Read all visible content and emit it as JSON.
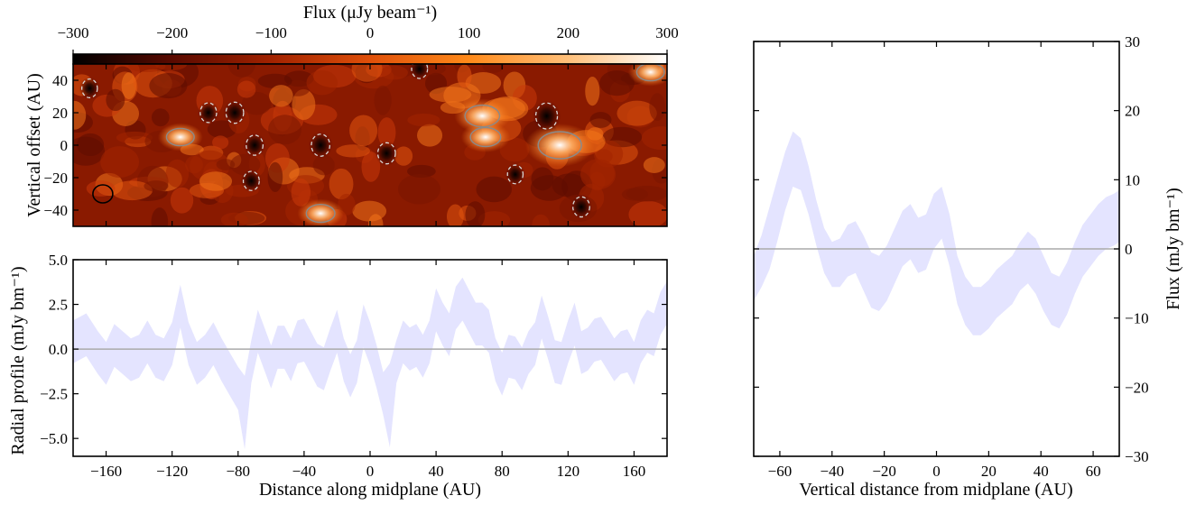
{
  "chart_data": [
    {
      "id": "flux-map",
      "type": "heatmap",
      "colorbar": {
        "label": "Flux (μJy beam⁻¹)",
        "range": [
          -300,
          300
        ],
        "ticks": [
          "−300",
          "−200",
          "−100",
          "0",
          "100",
          "200",
          "300"
        ],
        "tick_values": [
          -300,
          -200,
          -100,
          0,
          100,
          200,
          300
        ],
        "colormap": [
          "#000000",
          "#5a0a00",
          "#a12200",
          "#e0500a",
          "#ff8a1a",
          "#ffc07a",
          "#ffffff"
        ]
      },
      "xlim": [
        -180,
        180
      ],
      "ylim": [
        -50,
        50
      ],
      "ylabel": "Vertical offset (AU)",
      "ytick_labels": [
        "40",
        "20",
        "0",
        "−20",
        "−40"
      ],
      "ytick_values": [
        40,
        20,
        0,
        -20,
        -40
      ],
      "hot_spots": [
        {
          "x": 115,
          "y": 0,
          "value": 300
        },
        {
          "x": 68,
          "y": 18,
          "value": 200
        },
        {
          "x": 70,
          "y": 5,
          "value": 150
        },
        {
          "x": -115,
          "y": 5,
          "value": 120
        },
        {
          "x": -30,
          "y": -42,
          "value": 130
        },
        {
          "x": 170,
          "y": 45,
          "value": 120
        }
      ],
      "cold_spots": [
        {
          "x": 107,
          "y": 18,
          "value": -300
        },
        {
          "x": -30,
          "y": 0,
          "value": -220
        },
        {
          "x": -82,
          "y": 20,
          "value": -200
        },
        {
          "x": 10,
          "y": -5,
          "value": -200
        },
        {
          "x": -70,
          "y": 0,
          "value": -180
        },
        {
          "x": 128,
          "y": -38,
          "value": -180
        },
        {
          "x": -98,
          "y": 20,
          "value": -170
        },
        {
          "x": 30,
          "y": 47,
          "value": -160
        },
        {
          "x": -170,
          "y": 35,
          "value": -150
        },
        {
          "x": -72,
          "y": -22,
          "value": -160
        },
        {
          "x": 88,
          "y": -18,
          "value": -150
        }
      ],
      "beam": {
        "x": -162,
        "y": -30
      }
    },
    {
      "id": "radial-profile",
      "type": "area",
      "xlabel": "Distance along midplane (AU)",
      "ylabel": "Radial profile (mJy bm⁻¹)",
      "xlim": [
        -180,
        180
      ],
      "ylim": [
        -6,
        5
      ],
      "xtick_labels": [
        "−160",
        "−120",
        "−80",
        "−40",
        "0",
        "40",
        "80",
        "120",
        "160"
      ],
      "xtick_values": [
        -160,
        -120,
        -80,
        -40,
        0,
        40,
        80,
        120,
        160
      ],
      "ytick_labels": [
        "5.0",
        "2.5",
        "0.0",
        "−2.5",
        "−5.0"
      ],
      "ytick_values": [
        5,
        2.5,
        0,
        -2.5,
        -5
      ],
      "band_color": "#e4e4ff",
      "zero_line_color": "#aaaaaa",
      "x": [
        -180,
        -172,
        -165,
        -160,
        -155,
        -150,
        -145,
        -140,
        -135,
        -130,
        -125,
        -120,
        -115,
        -110,
        -105,
        -100,
        -95,
        -90,
        -85,
        -80,
        -76,
        -72,
        -68,
        -64,
        -60,
        -56,
        -52,
        -48,
        -44,
        -40,
        -36,
        -32,
        -28,
        -24,
        -20,
        -16,
        -12,
        -8,
        -4,
        0,
        4,
        8,
        12,
        16,
        20,
        24,
        28,
        32,
        36,
        40,
        44,
        48,
        52,
        56,
        60,
        64,
        68,
        72,
        76,
        80,
        84,
        88,
        92,
        96,
        100,
        104,
        108,
        112,
        116,
        120,
        124,
        128,
        132,
        136,
        140,
        144,
        148,
        152,
        156,
        160,
        164,
        168,
        172,
        176,
        180
      ],
      "upper": [
        1.6,
        2.0,
        1.0,
        0.4,
        1.4,
        1.0,
        0.6,
        0.8,
        1.6,
        0.8,
        0.6,
        1.5,
        3.6,
        1.5,
        0.4,
        0.8,
        1.5,
        0.6,
        -0.2,
        -1.0,
        -1.5,
        0.5,
        2.2,
        1.2,
        0.2,
        1.3,
        1.3,
        0.6,
        1.6,
        1.7,
        1.0,
        0.3,
        0.1,
        1.2,
        2.2,
        0.6,
        -0.3,
        0.5,
        2.5,
        1.5,
        0.2,
        -1.3,
        -0.8,
        0.5,
        1.6,
        1.2,
        1.4,
        0.8,
        1.6,
        3.4,
        2.6,
        2.0,
        3.5,
        4.0,
        3.3,
        2.6,
        2.6,
        2.2,
        0.6,
        -0.2,
        0.8,
        0.7,
        0.1,
        1.0,
        1.5,
        3.0,
        1.8,
        0.5,
        0.4,
        1.6,
        2.6,
        1.0,
        1.2,
        1.7,
        1.8,
        1.2,
        0.6,
        1.0,
        1.1,
        0.4,
        1.6,
        2.2,
        2.0,
        3.2,
        3.8
      ],
      "lower": [
        -0.8,
        -0.4,
        -1.4,
        -2.0,
        -1.0,
        -1.4,
        -1.8,
        -1.6,
        -0.8,
        -1.6,
        -1.8,
        -0.9,
        1.2,
        -0.9,
        -2.0,
        -1.6,
        -0.9,
        -1.8,
        -2.6,
        -3.4,
        -5.6,
        -1.9,
        -0.2,
        -1.2,
        -2.2,
        -1.1,
        -1.1,
        -1.8,
        -0.8,
        -0.7,
        -1.4,
        -2.1,
        -2.3,
        -1.2,
        -0.2,
        -1.8,
        -2.7,
        -1.9,
        0.1,
        -0.9,
        -2.2,
        -3.7,
        -5.5,
        -1.9,
        -0.8,
        -1.2,
        -1.0,
        -1.6,
        -0.8,
        1.0,
        0.2,
        -0.4,
        1.1,
        1.6,
        0.9,
        0.2,
        0.2,
        -0.2,
        -1.8,
        -2.6,
        -1.6,
        -1.7,
        -2.3,
        -1.4,
        -0.9,
        0.6,
        -0.6,
        -1.9,
        -2.0,
        -0.8,
        0.2,
        -1.4,
        -1.2,
        -0.7,
        -0.6,
        -1.2,
        -1.8,
        -1.4,
        -1.3,
        -2.0,
        -0.8,
        -0.2,
        -0.4,
        0.8,
        1.4
      ]
    },
    {
      "id": "vertical-profile",
      "type": "area",
      "xlabel": "Vertical distance from midplane (AU)",
      "ylabel": "Flux (mJy bm⁻¹)",
      "xlim": [
        -70,
        70
      ],
      "ylim": [
        -30,
        30
      ],
      "xtick_labels": [
        "−60",
        "−40",
        "−20",
        "0",
        "20",
        "40",
        "60"
      ],
      "xtick_values": [
        -60,
        -40,
        -20,
        0,
        20,
        40,
        60
      ],
      "ytick_labels": [
        "30",
        "20",
        "10",
        "0",
        "−10",
        "−20",
        "−30"
      ],
      "ytick_values": [
        30,
        20,
        10,
        0,
        -10,
        -20,
        -30
      ],
      "band_color": "#e4e4ff",
      "zero_line_color": "#aaaaaa",
      "x": [
        -70,
        -67,
        -64,
        -61,
        -58,
        -55,
        -52,
        -49,
        -46,
        -43,
        -40,
        -37,
        -34,
        -31,
        -28,
        -25,
        -22,
        -19,
        -16,
        -13,
        -10,
        -7,
        -4,
        -1,
        2,
        5,
        8,
        11,
        14,
        17,
        20,
        23,
        26,
        29,
        32,
        35,
        38,
        41,
        44,
        47,
        50,
        53,
        56,
        59,
        62,
        65,
        68,
        70
      ],
      "upper": [
        -1.0,
        2.0,
        6.0,
        10.0,
        14.0,
        17.0,
        16.0,
        12.0,
        7.0,
        3.0,
        1.0,
        1.5,
        3.5,
        4.0,
        2.0,
        -0.5,
        -1.0,
        0.5,
        3.0,
        5.5,
        6.5,
        4.5,
        5.0,
        8.0,
        9.0,
        5.0,
        -1.0,
        -4.0,
        -5.5,
        -5.5,
        -4.5,
        -3.0,
        -2.0,
        -1.0,
        1.0,
        2.5,
        1.5,
        -1.0,
        -3.5,
        -4.0,
        -2.0,
        1.0,
        3.5,
        5.0,
        6.5,
        7.5,
        8.0,
        8.5
      ],
      "lower": [
        -7.5,
        -5.5,
        -3.0,
        1.0,
        5.5,
        9.0,
        8.5,
        5.0,
        0.5,
        -3.5,
        -5.5,
        -5.5,
        -4.0,
        -3.5,
        -6.0,
        -8.5,
        -9.0,
        -7.5,
        -5.0,
        -2.5,
        -1.5,
        -3.5,
        -3.0,
        0.0,
        1.5,
        -2.5,
        -8.0,
        -11.0,
        -12.5,
        -12.5,
        -11.5,
        -10.0,
        -9.0,
        -8.0,
        -6.0,
        -5.0,
        -6.5,
        -9.0,
        -11.0,
        -11.5,
        -9.5,
        -6.5,
        -4.0,
        -2.5,
        -1.0,
        0.0,
        0.5,
        1.0
      ]
    }
  ]
}
